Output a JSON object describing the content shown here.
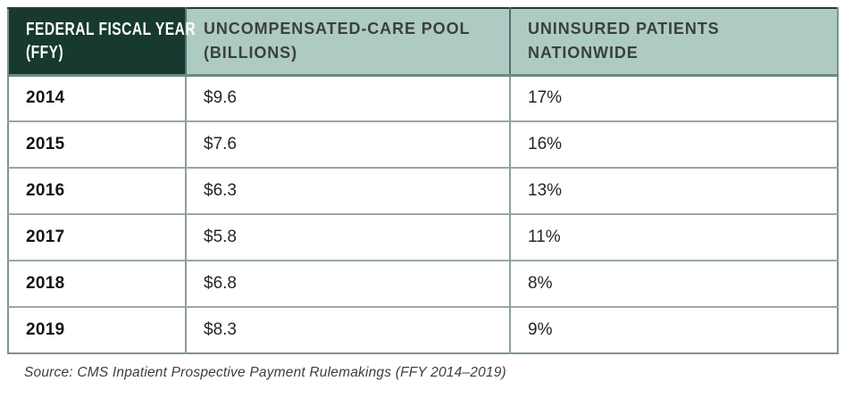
{
  "table": {
    "columns": [
      {
        "line1": "FEDERAL FISCAL YEAR",
        "line2": "(FFY)"
      },
      {
        "line1": "UNCOMPENSATED-CARE POOL",
        "line2": "(BILLIONS)"
      },
      {
        "line1": "UNINSURED PATIENTS",
        "line2": "NATIONWIDE"
      }
    ],
    "rows": [
      {
        "year": "2014",
        "pool": "$9.6",
        "uninsured": "17%"
      },
      {
        "year": "2015",
        "pool": "$7.6",
        "uninsured": "16%"
      },
      {
        "year": "2016",
        "pool": "$6.3",
        "uninsured": "13%"
      },
      {
        "year": "2017",
        "pool": "$5.8",
        "uninsured": "11%"
      },
      {
        "year": "2018",
        "pool": "$6.8",
        "uninsured": "8%"
      },
      {
        "year": "2019",
        "pool": "$8.3",
        "uninsured": "9%"
      }
    ]
  },
  "source": "Source: CMS Inpatient Prospective Payment Rulemakings (FFY 2014–2019)",
  "colors": {
    "header_dark": "#17392f",
    "header_sage": "#adcbc2",
    "border_outer": "#7e938f",
    "border_top": "#223c37",
    "border_header": "#6d8983",
    "border_header_divider": "#52706a",
    "border_row": "#99a8a4",
    "border_col": "#8e9f9b"
  },
  "chart_data": {
    "type": "table",
    "title": "",
    "columns": [
      "Federal Fiscal Year (FFY)",
      "Uncompensated-Care Pool (Billions)",
      "Uninsured Patients Nationwide"
    ],
    "categories": [
      "2014",
      "2015",
      "2016",
      "2017",
      "2018",
      "2019"
    ],
    "series": [
      {
        "name": "Uncompensated-Care Pool (Billions USD)",
        "values": [
          9.6,
          7.6,
          6.3,
          5.8,
          6.8,
          8.3
        ]
      },
      {
        "name": "Uninsured Patients Nationwide (%)",
        "values": [
          17,
          16,
          13,
          11,
          8,
          9
        ]
      }
    ],
    "source": "Source: CMS Inpatient Prospective Payment Rulemakings (FFY 2014–2019)"
  }
}
